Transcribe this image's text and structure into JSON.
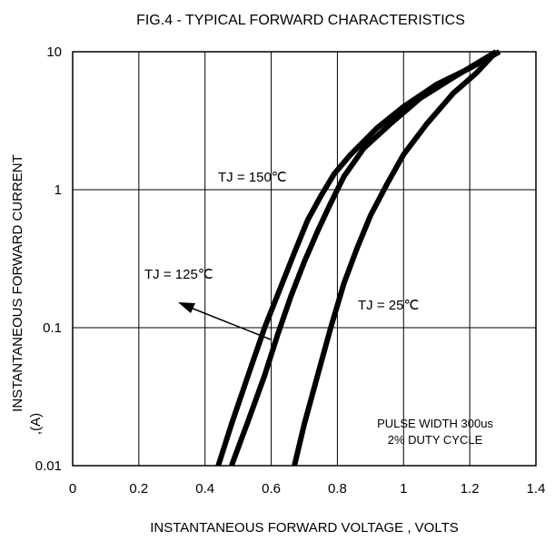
{
  "chart_data": {
    "type": "line",
    "title": "FIG.4 - TYPICAL FORWARD CHARACTERISTICS",
    "xlabel": "INSTANTANEOUS FORWARD VOLTAGE , VOLTS",
    "ylabel_lines": [
      "INSTANTANEOUS  FORWARD CURRENT",
      ",(A)"
    ],
    "xlim": [
      0,
      1.4
    ],
    "ylim": [
      0.01,
      10
    ],
    "yscale": "log",
    "grid": true,
    "x_ticks": [
      "0",
      "0.2",
      "0.4",
      "0.6",
      "0.8",
      "1",
      "1.2",
      "1.4"
    ],
    "y_ticks": [
      "0.01",
      "0.1",
      "1",
      "10"
    ],
    "series": [
      {
        "name": "TJ = 150℃",
        "points": [
          [
            0.44,
            0.01
          ],
          [
            0.48,
            0.02
          ],
          [
            0.53,
            0.045
          ],
          [
            0.58,
            0.1
          ],
          [
            0.63,
            0.2
          ],
          [
            0.67,
            0.35
          ],
          [
            0.71,
            0.6
          ],
          [
            0.75,
            0.9
          ],
          [
            0.79,
            1.3
          ],
          [
            0.84,
            1.8
          ],
          [
            0.92,
            2.8
          ],
          [
            1.0,
            4.0
          ],
          [
            1.1,
            5.8
          ],
          [
            1.2,
            7.6
          ],
          [
            1.29,
            10
          ]
        ]
      },
      {
        "name": "TJ = 125℃",
        "points": [
          [
            0.48,
            0.01
          ],
          [
            0.53,
            0.021
          ],
          [
            0.58,
            0.045
          ],
          [
            0.62,
            0.09
          ],
          [
            0.66,
            0.17
          ],
          [
            0.7,
            0.3
          ],
          [
            0.74,
            0.5
          ],
          [
            0.78,
            0.8
          ],
          [
            0.82,
            1.25
          ],
          [
            0.88,
            2.0
          ],
          [
            0.96,
            3.0
          ],
          [
            1.05,
            4.6
          ],
          [
            1.15,
            6.5
          ],
          [
            1.28,
            10
          ]
        ]
      },
      {
        "name": "TJ = 25℃",
        "points": [
          [
            0.67,
            0.01
          ],
          [
            0.7,
            0.02
          ],
          [
            0.74,
            0.045
          ],
          [
            0.78,
            0.1
          ],
          [
            0.82,
            0.21
          ],
          [
            0.86,
            0.38
          ],
          [
            0.9,
            0.65
          ],
          [
            0.95,
            1.1
          ],
          [
            1.0,
            1.8
          ],
          [
            1.07,
            3.0
          ],
          [
            1.15,
            5.0
          ],
          [
            1.22,
            7.0
          ],
          [
            1.28,
            10
          ]
        ]
      }
    ],
    "annotations": {
      "tj150": "TJ = 150℃",
      "tj125": "TJ = 125℃",
      "tj25": "TJ = 25℃",
      "note1": "PULSE WIDTH 300us",
      "note2": "2% DUTY CYCLE"
    }
  }
}
